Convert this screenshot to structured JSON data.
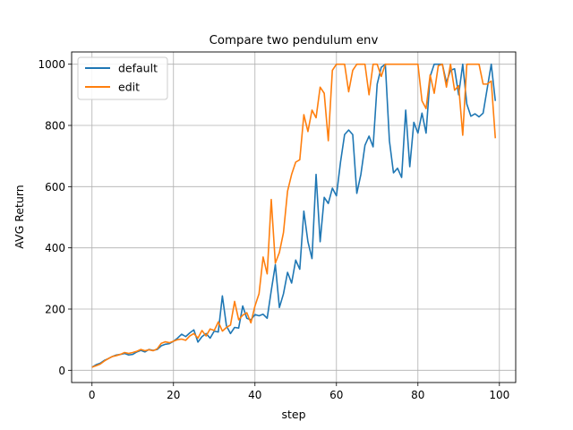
{
  "chart_data": {
    "type": "line",
    "title": "Compare two pendulum env",
    "xlabel": "step",
    "ylabel": "AVG Return",
    "xlim": [
      -5,
      104
    ],
    "ylim": [
      -40,
      1040
    ],
    "xticks": [
      0,
      20,
      40,
      60,
      80,
      100
    ],
    "yticks": [
      0,
      200,
      400,
      600,
      800,
      1000
    ],
    "grid": true,
    "legend": "top-left",
    "series": [
      {
        "name": "default",
        "color": "#1f77b4",
        "values": [
          10,
          18,
          23,
          32,
          38,
          45,
          50,
          52,
          55,
          50,
          52,
          60,
          65,
          60,
          68,
          65,
          68,
          80,
          85,
          87,
          95,
          105,
          118,
          110,
          122,
          132,
          92,
          110,
          120,
          105,
          128,
          125,
          243,
          145,
          120,
          140,
          138,
          210,
          170,
          165,
          182,
          178,
          183,
          170,
          260,
          345,
          205,
          250,
          320,
          285,
          360,
          330,
          520,
          420,
          365,
          640,
          420,
          565,
          545,
          595,
          570,
          680,
          770,
          785,
          770,
          578,
          640,
          735,
          765,
          730,
          935,
          990,
          1000,
          750,
          645,
          660,
          630,
          850,
          665,
          810,
          775,
          840,
          775,
          960,
          1000,
          1000,
          1000,
          940,
          980,
          985,
          900,
          1000,
          870,
          830,
          838,
          828,
          840,
          920,
          1000,
          880
        ]
      },
      {
        "name": "edit",
        "color": "#ff7f0e",
        "values": [
          10,
          15,
          20,
          30,
          38,
          45,
          48,
          52,
          58,
          55,
          58,
          62,
          68,
          64,
          67,
          64,
          70,
          88,
          93,
          90,
          95,
          100,
          102,
          98,
          112,
          120,
          105,
          130,
          112,
          135,
          130,
          158,
          128,
          140,
          148,
          225,
          165,
          180,
          188,
          155,
          210,
          250,
          370,
          315,
          558,
          350,
          385,
          450,
          585,
          640,
          680,
          688,
          835,
          780,
          850,
          825,
          925,
          905,
          750,
          980,
          1000,
          1000,
          1000,
          910,
          980,
          1000,
          1000,
          1000,
          900,
          1000,
          1000,
          960,
          1000,
          1000,
          1000,
          1000,
          1000,
          1000,
          1000,
          1000,
          1000,
          880,
          855,
          965,
          905,
          995,
          1000,
          925,
          1000,
          915,
          930,
          768,
          1000,
          1000,
          1000,
          1000,
          935,
          935,
          945,
          758
        ]
      }
    ]
  }
}
